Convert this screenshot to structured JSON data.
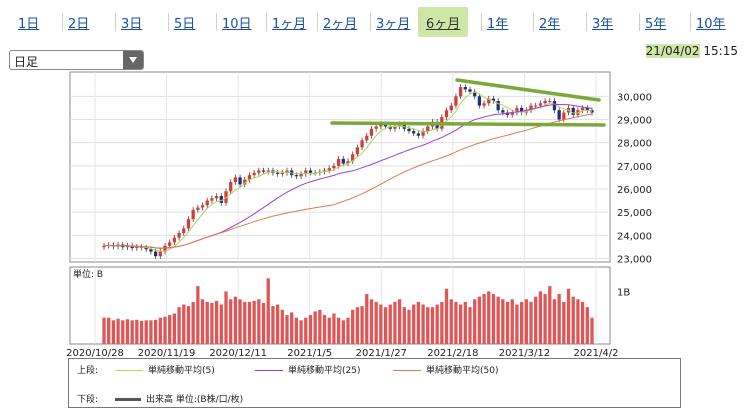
{
  "tabs": [
    {
      "label": "1日"
    },
    {
      "label": "2日"
    },
    {
      "label": "3日"
    },
    {
      "label": "5日"
    },
    {
      "label": "10日"
    },
    {
      "label": "1ヶ月"
    },
    {
      "label": "2ヶ月"
    },
    {
      "label": "3ヶ月"
    },
    {
      "label": "6ヶ月",
      "active": true
    },
    {
      "label": "1年"
    },
    {
      "label": "2年"
    },
    {
      "label": "3年"
    },
    {
      "label": "5年"
    },
    {
      "label": "10年"
    }
  ],
  "period_select": {
    "value": "日足"
  },
  "timestamp": {
    "date": "21/04/02",
    "time": "15:15"
  },
  "colors": {
    "up": "#d93a3a",
    "down": "#1f2d7a",
    "ma5": "#b6d35a",
    "ma25": "#9b3fd0",
    "ma50": "#e07a4a",
    "volume": "#e05555",
    "trendline": "#7aa83a",
    "tab_link": "#1a4fa0",
    "highlight": "#cfe7a6"
  },
  "chart_data": [
    {
      "type": "candlestick",
      "x_labels": [
        "2020/10/28",
        "2020/11/19",
        "2020/12/11",
        "2021/1/5",
        "2021/1/27",
        "2021/2/18",
        "2021/3/12",
        "2021/4/2"
      ],
      "y_ticks": [
        "30,000",
        "29,000",
        "28,000",
        "27,000",
        "26,000",
        "25,000",
        "24,000",
        "23,000"
      ],
      "ylim": [
        22850,
        31050
      ],
      "grid": true,
      "series": [
        {
          "name": "Price",
          "closes": [
            23550,
            23580,
            23520,
            23600,
            23490,
            23560,
            23450,
            23500,
            23470,
            23400,
            23300,
            23100,
            23300,
            23550,
            23700,
            23900,
            24100,
            24300,
            24700,
            25100,
            25200,
            25300,
            25500,
            25600,
            25700,
            25400,
            25900,
            26300,
            26500,
            26200,
            26400,
            26600,
            26700,
            26800,
            26750,
            26800,
            26700,
            26650,
            26700,
            26800,
            26600,
            26550,
            26650,
            26800,
            26700,
            26700,
            26750,
            26800,
            26900,
            27000,
            27300,
            27100,
            27200,
            27500,
            27800,
            28100,
            28300,
            28600,
            28700,
            28800,
            28700,
            28600,
            28700,
            28800,
            28600,
            28500,
            28400,
            28300,
            28500,
            28700,
            28900,
            28600,
            29100,
            29400,
            29600,
            30000,
            30400,
            30300,
            30200,
            30000,
            29600,
            29700,
            29900,
            29800,
            29400,
            29300,
            29200,
            29300,
            29500,
            29300,
            29400,
            29600,
            29600,
            29700,
            29800,
            29800,
            29400,
            29000,
            29300,
            29500,
            29200,
            29400,
            29500,
            29400,
            29300
          ]
        }
      ],
      "trendlines": "two hand-drawn resistance/support lines"
    },
    {
      "type": "bar",
      "name": "出来高",
      "unit_label": "単位: B",
      "y_tick": "1B",
      "values": [
        0.5,
        0.5,
        0.45,
        0.48,
        0.45,
        0.47,
        0.45,
        0.46,
        0.44,
        0.45,
        0.45,
        0.46,
        0.5,
        0.52,
        0.55,
        0.58,
        0.7,
        0.75,
        0.72,
        0.8,
        1.1,
        0.85,
        0.8,
        0.78,
        0.82,
        0.75,
        1.0,
        0.85,
        0.9,
        0.85,
        0.8,
        0.8,
        0.82,
        0.85,
        0.78,
        1.25,
        0.72,
        0.75,
        0.65,
        0.55,
        0.6,
        0.5,
        0.45,
        0.5,
        0.55,
        0.62,
        0.65,
        0.55,
        0.5,
        0.58,
        0.5,
        0.45,
        0.5,
        0.65,
        0.7,
        0.72,
        0.95,
        0.85,
        0.8,
        0.75,
        0.7,
        0.75,
        0.8,
        0.85,
        0.7,
        0.65,
        0.75,
        0.8,
        0.75,
        0.7,
        0.7,
        0.75,
        0.8,
        1.05,
        0.85,
        0.8,
        0.75,
        0.8,
        0.7,
        0.85,
        0.9,
        0.95,
        1.0,
        0.95,
        0.9,
        0.85,
        0.8,
        0.85,
        0.75,
        0.8,
        0.85,
        0.8,
        0.9,
        1.0,
        0.95,
        1.1,
        0.85,
        0.95,
        0.8,
        1.05,
        0.9,
        0.85,
        0.8,
        0.7,
        0.5
      ]
    }
  ],
  "legend": {
    "top_label": "上段:",
    "bottom_label": "下段:",
    "ma5": "単純移動平均(5)",
    "ma25": "単純移動平均(25)",
    "ma50": "単純移動平均(50)",
    "volume": "出来高 単位:(B株/口/枚)"
  }
}
